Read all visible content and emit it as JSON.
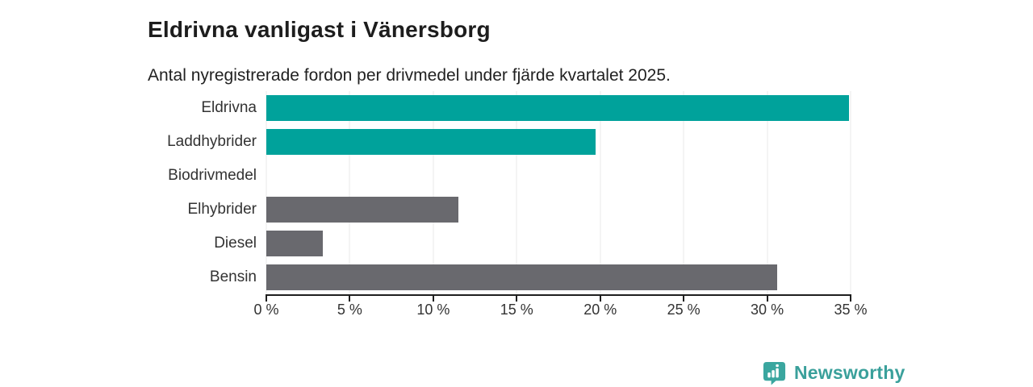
{
  "header": {
    "title": "Eldrivna vanligast i Vänersborg",
    "subtitle": "Antal nyregistrerade fordon per drivmedel under fjärde kvartalet 2025."
  },
  "chart_data": {
    "type": "bar",
    "orientation": "horizontal",
    "categories": [
      "Eldrivna",
      "Laddhybrider",
      "Biodrivmedel",
      "Elhybrider",
      "Diesel",
      "Bensin"
    ],
    "values": [
      34.9,
      19.7,
      0,
      11.5,
      3.4,
      30.6
    ],
    "highlighted": [
      true,
      true,
      false,
      false,
      false,
      false
    ],
    "unit": "%",
    "xlim": [
      0,
      35
    ],
    "xticks": [
      0,
      5,
      10,
      15,
      20,
      25,
      30,
      35
    ],
    "xtick_suffix": " %",
    "grid": true,
    "legend": "none",
    "colors": {
      "highlight": "#00a29b",
      "default": "#69696e",
      "gridline": "#e9e9e9",
      "axis": "#1f1f1f",
      "label": "#333333"
    }
  },
  "footer": {
    "brand": "Newsworthy",
    "brand_color": "#3aa09b",
    "logo_icon_color": "#3aa69f",
    "logo_icon": "bar-chart-pin-icon"
  }
}
